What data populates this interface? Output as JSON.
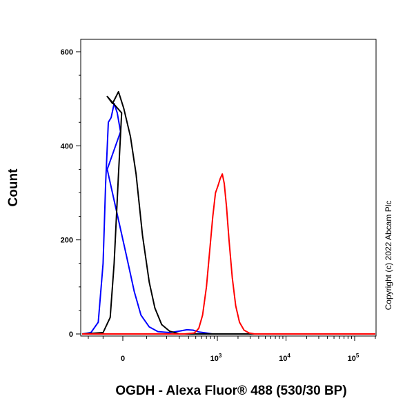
{
  "chart_data": {
    "type": "line",
    "title": "",
    "xlabel": "OGDH - Alexa Fluor® 488 (530/30 BP)",
    "ylabel": "Count",
    "ylim": [
      0,
      600
    ],
    "x_scale": "biexponential",
    "y_ticks": [
      {
        "value": 0,
        "label": "0"
      },
      {
        "value": 200,
        "label": "200"
      },
      {
        "value": 400,
        "label": "400"
      },
      {
        "value": 600,
        "label": "600"
      }
    ],
    "x_ticks": [
      {
        "value": 0,
        "label": "0",
        "sup": ""
      },
      {
        "value": 1000,
        "label": "10",
        "sup": "3"
      },
      {
        "value": 10000,
        "label": "10",
        "sup": "4"
      },
      {
        "value": 100000,
        "label": "10",
        "sup": "5"
      }
    ],
    "grid": false,
    "legend": "none",
    "series": [
      {
        "color": "#0000ff",
        "points": [
          [
            -250,
            0
          ],
          [
            -180,
            3
          ],
          [
            -130,
            25
          ],
          [
            -100,
            150
          ],
          [
            -85,
            320
          ],
          [
            -70,
            450
          ],
          [
            -55,
            460
          ],
          [
            -40,
            490
          ],
          [
            -25,
            470
          ],
          [
            -10,
            430
          ],
          [
            5,
            350
          ],
          [
            20,
            270
          ],
          [
            40,
            170
          ],
          [
            60,
            90
          ],
          [
            80,
            40
          ],
          [
            110,
            15
          ],
          [
            150,
            5
          ],
          [
            220,
            3
          ],
          [
            300,
            6
          ],
          [
            380,
            9
          ],
          [
            460,
            8
          ],
          [
            560,
            4
          ],
          [
            700,
            2
          ],
          [
            850,
            0
          ],
          [
            1500,
            0
          ],
          [
            200000,
            0
          ]
        ]
      },
      {
        "color": "#000000",
        "points": [
          [
            -250,
            0
          ],
          [
            -100,
            3
          ],
          [
            -60,
            35
          ],
          [
            -40,
            150
          ],
          [
            -20,
            330
          ],
          [
            -5,
            470
          ],
          [
            5,
            505
          ],
          [
            15,
            490
          ],
          [
            25,
            515
          ],
          [
            35,
            480
          ],
          [
            50,
            420
          ],
          [
            65,
            340
          ],
          [
            85,
            210
          ],
          [
            110,
            110
          ],
          [
            135,
            55
          ],
          [
            170,
            20
          ],
          [
            220,
            6
          ],
          [
            300,
            0
          ],
          [
            200000,
            0
          ]
        ]
      },
      {
        "color": "#ff0000",
        "points": [
          [
            -250,
            0
          ],
          [
            350,
            0
          ],
          [
            480,
            2
          ],
          [
            550,
            12
          ],
          [
            620,
            40
          ],
          [
            700,
            100
          ],
          [
            780,
            180
          ],
          [
            860,
            250
          ],
          [
            940,
            300
          ],
          [
            1020,
            315
          ],
          [
            1100,
            330
          ],
          [
            1180,
            340
          ],
          [
            1260,
            320
          ],
          [
            1360,
            270
          ],
          [
            1480,
            200
          ],
          [
            1650,
            120
          ],
          [
            1850,
            60
          ],
          [
            2100,
            25
          ],
          [
            2450,
            8
          ],
          [
            2900,
            2
          ],
          [
            3500,
            0
          ],
          [
            200000,
            0
          ]
        ]
      }
    ]
  },
  "watermark": "Copyright (c) 2022 Abcam Plc"
}
